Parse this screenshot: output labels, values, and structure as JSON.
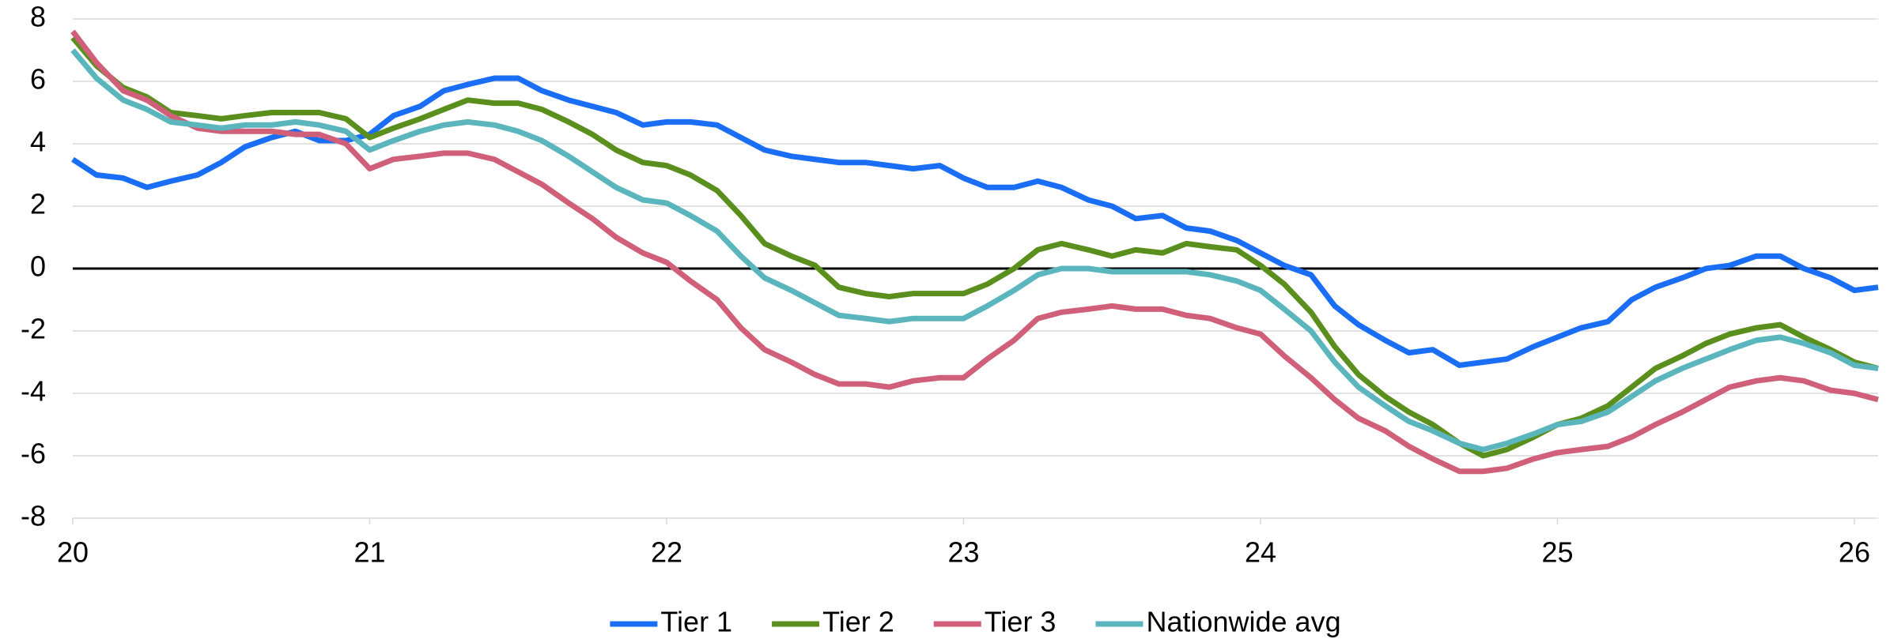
{
  "chart_data": {
    "type": "line",
    "x": [
      20,
      20.08,
      20.17,
      20.25,
      20.33,
      20.42,
      20.5,
      20.58,
      20.67,
      20.75,
      20.83,
      20.92,
      21,
      21.08,
      21.17,
      21.25,
      21.33,
      21.42,
      21.5,
      21.58,
      21.67,
      21.75,
      21.83,
      21.92,
      22,
      22.08,
      22.17,
      22.25,
      22.33,
      22.42,
      22.5,
      22.58,
      22.67,
      22.75,
      22.83,
      22.92,
      23,
      23.08,
      23.17,
      23.25,
      23.33,
      23.42,
      23.5,
      23.58,
      23.67,
      23.75,
      23.83,
      23.92,
      24,
      24.08,
      24.17,
      24.25,
      24.33,
      24.42,
      24.5,
      24.58,
      24.67,
      24.75,
      24.83,
      24.92,
      25,
      25.08,
      25.17,
      25.25,
      25.33,
      25.42,
      25.5,
      25.58,
      25.67,
      25.75,
      25.83,
      25.92,
      26,
      26.08
    ],
    "series": [
      {
        "name": "Tier 1",
        "color": "#1a6ef5",
        "values": [
          3.5,
          3.0,
          2.9,
          2.6,
          2.8,
          3.0,
          3.4,
          3.9,
          4.2,
          4.4,
          4.1,
          4.1,
          4.3,
          4.9,
          5.2,
          5.7,
          5.9,
          6.1,
          6.1,
          5.7,
          5.4,
          5.2,
          5.0,
          4.6,
          4.7,
          4.7,
          4.6,
          4.2,
          3.8,
          3.6,
          3.5,
          3.4,
          3.4,
          3.3,
          3.2,
          3.3,
          2.9,
          2.6,
          2.6,
          2.8,
          2.6,
          2.2,
          2.0,
          1.6,
          1.7,
          1.3,
          1.2,
          0.9,
          0.5,
          0.1,
          -0.2,
          -1.2,
          -1.8,
          -2.3,
          -2.7,
          -2.6,
          -3.1,
          -3.0,
          -2.9,
          -2.5,
          -2.2,
          -1.9,
          -1.7,
          -1.0,
          -0.6,
          -0.3,
          0.0,
          0.1,
          0.4,
          0.4,
          0.0,
          -0.3,
          -0.7,
          -0.6
        ]
      },
      {
        "name": "Tier 2",
        "color": "#5a8f1e",
        "values": [
          7.4,
          6.5,
          5.8,
          5.5,
          5.0,
          4.9,
          4.8,
          4.9,
          5.0,
          5.0,
          5.0,
          4.8,
          4.2,
          4.5,
          4.8,
          5.1,
          5.4,
          5.3,
          5.3,
          5.1,
          4.7,
          4.3,
          3.8,
          3.4,
          3.3,
          3.0,
          2.5,
          1.7,
          0.8,
          0.4,
          0.1,
          -0.6,
          -0.8,
          -0.9,
          -0.8,
          -0.8,
          -0.8,
          -0.5,
          0.0,
          0.6,
          0.8,
          0.6,
          0.4,
          0.6,
          0.5,
          0.8,
          0.7,
          0.6,
          0.1,
          -0.5,
          -1.4,
          -2.5,
          -3.4,
          -4.1,
          -4.6,
          -5.0,
          -5.6,
          -6.0,
          -5.8,
          -5.4,
          -5.0,
          -4.8,
          -4.4,
          -3.8,
          -3.2,
          -2.8,
          -2.4,
          -2.1,
          -1.9,
          -1.8,
          -2.2,
          -2.6,
          -3.0,
          -3.2
        ]
      },
      {
        "name": "Tier 3",
        "color": "#d0607a",
        "values": [
          7.6,
          6.6,
          5.7,
          5.4,
          4.9,
          4.5,
          4.4,
          4.4,
          4.4,
          4.3,
          4.3,
          4.0,
          3.2,
          3.5,
          3.6,
          3.7,
          3.7,
          3.5,
          3.1,
          2.7,
          2.1,
          1.6,
          1.0,
          0.5,
          0.2,
          -0.4,
          -1.0,
          -1.9,
          -2.6,
          -3.0,
          -3.4,
          -3.7,
          -3.7,
          -3.8,
          -3.6,
          -3.5,
          -3.5,
          -2.9,
          -2.3,
          -1.6,
          -1.4,
          -1.3,
          -1.2,
          -1.3,
          -1.3,
          -1.5,
          -1.6,
          -1.9,
          -2.1,
          -2.8,
          -3.5,
          -4.2,
          -4.8,
          -5.2,
          -5.7,
          -6.1,
          -6.5,
          -6.5,
          -6.4,
          -6.1,
          -5.9,
          -5.8,
          -5.7,
          -5.4,
          -5.0,
          -4.6,
          -4.2,
          -3.8,
          -3.6,
          -3.5,
          -3.6,
          -3.9,
          -4.0,
          -4.2
        ]
      },
      {
        "name": "Nationwide avg",
        "color": "#5ab5bd",
        "values": [
          7.0,
          6.1,
          5.4,
          5.1,
          4.7,
          4.6,
          4.5,
          4.6,
          4.6,
          4.7,
          4.6,
          4.4,
          3.8,
          4.1,
          4.4,
          4.6,
          4.7,
          4.6,
          4.4,
          4.1,
          3.6,
          3.1,
          2.6,
          2.2,
          2.1,
          1.7,
          1.2,
          0.4,
          -0.3,
          -0.7,
          -1.1,
          -1.5,
          -1.6,
          -1.7,
          -1.6,
          -1.6,
          -1.6,
          -1.2,
          -0.7,
          -0.2,
          0.0,
          0.0,
          -0.1,
          -0.1,
          -0.1,
          -0.1,
          -0.2,
          -0.4,
          -0.7,
          -1.3,
          -2.0,
          -3.0,
          -3.8,
          -4.4,
          -4.9,
          -5.2,
          -5.6,
          -5.8,
          -5.6,
          -5.3,
          -5.0,
          -4.9,
          -4.6,
          -4.1,
          -3.6,
          -3.2,
          -2.9,
          -2.6,
          -2.3,
          -2.2,
          -2.4,
          -2.7,
          -3.1,
          -3.2
        ]
      }
    ],
    "xlim": [
      20,
      26.08
    ],
    "xticks": [
      20,
      21,
      22,
      23,
      24,
      25,
      26
    ],
    "ylim": [
      -8,
      8
    ],
    "yticks": [
      -8,
      -6,
      -4,
      -2,
      0,
      2,
      4,
      6,
      8
    ],
    "grid": true,
    "legend": "bottom"
  }
}
